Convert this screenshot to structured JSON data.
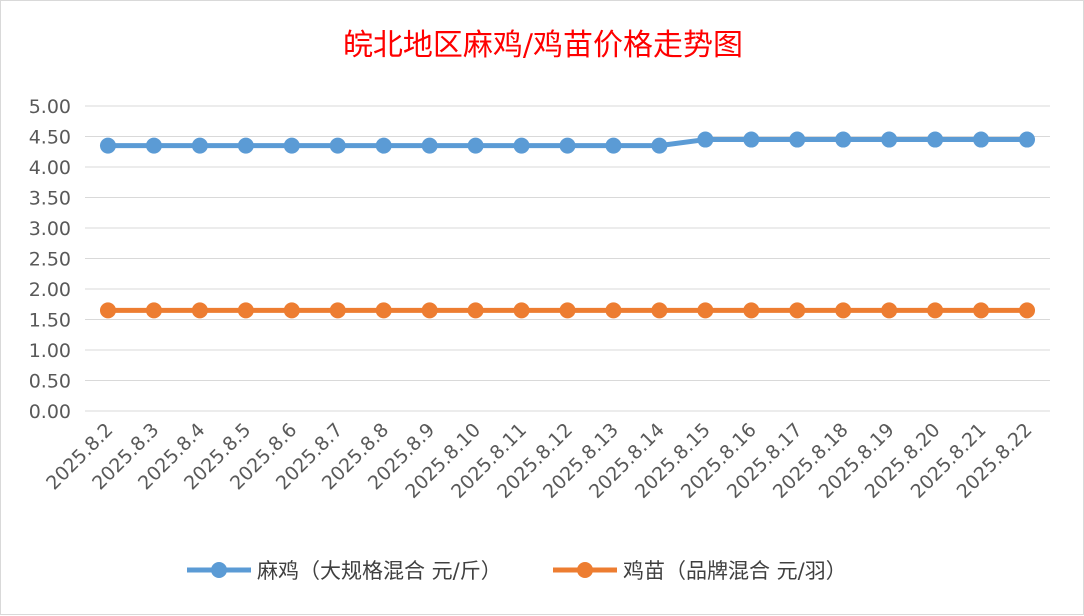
{
  "chart_data": {
    "type": "line",
    "title": "皖北地区麻鸡/鸡苗价格走势图",
    "categories": [
      "2025.8.2",
      "2025.8.3",
      "2025.8.4",
      "2025.8.5",
      "2025.8.6",
      "2025.8.7",
      "2025.8.8",
      "2025.8.9",
      "2025.8.10",
      "2025.8.11",
      "2025.8.12",
      "2025.8.13",
      "2025.8.14",
      "2025.8.15",
      "2025.8.16",
      "2025.8.17",
      "2025.8.18",
      "2025.8.19",
      "2025.8.20",
      "2025.8.21",
      "2025.8.22"
    ],
    "series": [
      {
        "name": "麻鸡（大规格混合 元/斤）",
        "color": "#5b9bd5",
        "values": [
          4.35,
          4.35,
          4.35,
          4.35,
          4.35,
          4.35,
          4.35,
          4.35,
          4.35,
          4.35,
          4.35,
          4.35,
          4.35,
          4.45,
          4.45,
          4.45,
          4.45,
          4.45,
          4.45,
          4.45,
          4.45
        ]
      },
      {
        "name": "鸡苗（品牌混合 元/羽）",
        "color": "#ed7d31",
        "values": [
          1.65,
          1.65,
          1.65,
          1.65,
          1.65,
          1.65,
          1.65,
          1.65,
          1.65,
          1.65,
          1.65,
          1.65,
          1.65,
          1.65,
          1.65,
          1.65,
          1.65,
          1.65,
          1.65,
          1.65,
          1.65
        ]
      }
    ],
    "ylim": [
      0,
      5
    ],
    "yticks": [
      "0.00",
      "0.50",
      "1.00",
      "1.50",
      "2.00",
      "2.50",
      "3.00",
      "3.50",
      "4.00",
      "4.50",
      "5.00"
    ],
    "grid": true,
    "legend_position": "bottom"
  }
}
